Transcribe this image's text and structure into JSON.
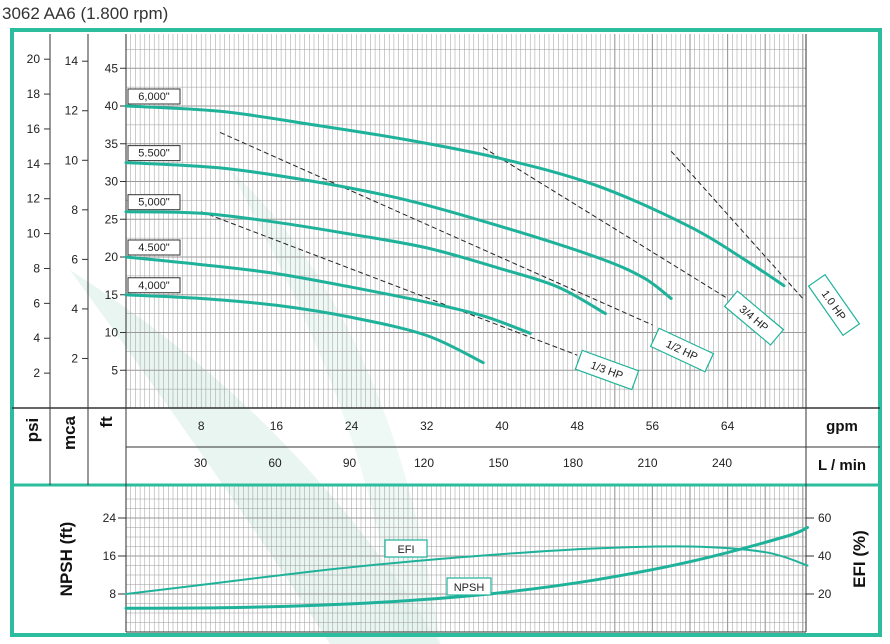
{
  "title": "3062 AA6 (1.800 rpm)",
  "colors": {
    "frame": "#2bbd9d",
    "curve": "#1fb29a",
    "grid": "#9a9a9a",
    "hp_line": "#222222",
    "watermark": "#e2f3ee"
  },
  "chart_data": [
    {
      "type": "line",
      "name": "performance",
      "x_unit_labels": {
        "gpm": "gpm",
        "lmin": "L / min"
      },
      "y_unit_labels": {
        "psi": "psi",
        "mca": "mca",
        "ft": "ft"
      },
      "x_gpm_ticks": [
        8,
        16,
        24,
        32,
        40,
        48,
        56,
        64
      ],
      "x_lmin_ticks": [
        30,
        60,
        90,
        120,
        150,
        180,
        210,
        240
      ],
      "y_ft_ticks": [
        5,
        10,
        15,
        20,
        25,
        30,
        35,
        40,
        45
      ],
      "y_mca_ticks": [
        2,
        4,
        6,
        8,
        10,
        12,
        14
      ],
      "y_psi_ticks": [
        2,
        4,
        6,
        8,
        10,
        12,
        14,
        16,
        18,
        20
      ],
      "xlim_gpm": [
        0,
        72.5
      ],
      "ylim_ft": [
        0,
        48.5
      ],
      "grid": true,
      "impeller_series": [
        {
          "label": "6,000\"",
          "x": [
            0,
            10,
            20,
            30,
            40,
            50,
            60,
            66,
            70
          ],
          "y": [
            40,
            39.3,
            37.5,
            35.5,
            33,
            29.5,
            24,
            19.5,
            16.2
          ]
        },
        {
          "label": "5.500\"",
          "x": [
            0,
            10,
            20,
            30,
            40,
            50,
            55,
            58
          ],
          "y": [
            32.5,
            31.8,
            30,
            27.5,
            24,
            20,
            17.3,
            14.5
          ]
        },
        {
          "label": "5,000\"",
          "x": [
            0,
            8,
            16,
            24,
            32,
            40,
            46,
            51
          ],
          "y": [
            26,
            25.8,
            24.6,
            23,
            21.2,
            18.4,
            16,
            12.5
          ]
        },
        {
          "label": "4.500\"",
          "x": [
            0,
            8,
            16,
            24,
            32,
            38,
            43
          ],
          "y": [
            20,
            19,
            17.8,
            16,
            14,
            12.2,
            9.9
          ]
        },
        {
          "label": "4,000\"",
          "x": [
            0,
            8,
            16,
            24,
            32,
            38
          ],
          "y": [
            15,
            14.5,
            13.6,
            12,
            9.6,
            6
          ]
        }
      ],
      "power_lines": [
        {
          "label": "1/3 HP",
          "x": [
            8,
            48
          ],
          "y": [
            26,
            7
          ]
        },
        {
          "label": "1/2 HP",
          "x": [
            10,
            56
          ],
          "y": [
            36.5,
            11
          ]
        },
        {
          "label": "3/4 HP",
          "x": [
            38,
            64
          ],
          "y": [
            34.5,
            14.5
          ]
        },
        {
          "label": "1.0 HP",
          "x": [
            58,
            72
          ],
          "y": [
            34,
            14.5
          ]
        }
      ]
    },
    {
      "type": "line",
      "name": "npsh-efficiency",
      "y_left_label": "NPSH (ft)",
      "y_right_label": "EFI (%)",
      "y_left_ticks": [
        8,
        16,
        24
      ],
      "y_right_ticks": [
        20,
        40,
        60
      ],
      "ylim_npsh_ft": [
        0,
        29.5
      ],
      "ylim_efi_pct": [
        0,
        73.75
      ],
      "series": [
        {
          "label": "NPSH",
          "axis": "left",
          "x": [
            0,
            10,
            20,
            30,
            40,
            50,
            60,
            70,
            72.5
          ],
          "y": [
            5,
            5.1,
            5.6,
            6.6,
            8.3,
            11,
            14.8,
            20,
            22
          ]
        },
        {
          "label": "EFI",
          "axis": "right",
          "x": [
            0,
            10,
            20,
            30,
            40,
            50,
            60,
            68,
            72.5
          ],
          "y": [
            20,
            26,
            32,
            37,
            41,
            44,
            45,
            42,
            35
          ]
        }
      ]
    }
  ]
}
